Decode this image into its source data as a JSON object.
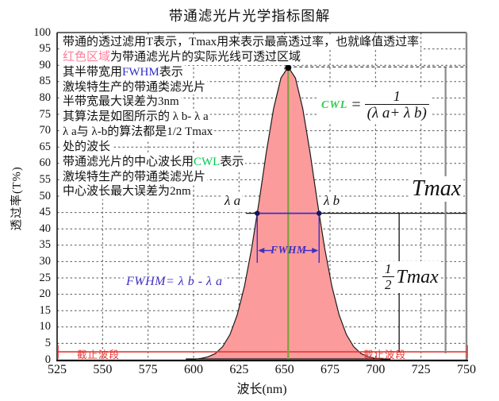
{
  "title": "带通滤光片光学指标图解",
  "info_lines": [
    [
      {
        "t": "带通的透过滤用T表示，Tmax用来表示最高透过率，也就峰值透过率",
        "c": ""
      }
    ],
    [
      {
        "t": "红色区域",
        "c": "pink"
      },
      {
        "t": "为带通滤光片的实际光线可透过区域",
        "c": ""
      }
    ],
    [
      {
        "t": "其半带宽用",
        "c": ""
      },
      {
        "t": "FWHM",
        "c": "blue"
      },
      {
        "t": "表示",
        "c": ""
      }
    ],
    [
      {
        "t": "激埃特生产的带通类滤光片",
        "c": ""
      }
    ],
    [
      {
        "t": "半带宽最大误差为3nm",
        "c": ""
      }
    ],
    [
      {
        "t": "其算法是如图所示的 λ b- λ a",
        "c": ""
      }
    ],
    [
      {
        "t": " λ a与 λ-b的算法都是1/2 Tmax",
        "c": ""
      }
    ],
    [
      {
        "t": "处的波长",
        "c": ""
      }
    ],
    [
      {
        "t": "带通滤光片的中心波长用",
        "c": ""
      },
      {
        "t": "CWL",
        "c": "green"
      },
      {
        "t": "表示",
        "c": ""
      }
    ],
    [
      {
        "t": "激埃特生产的带通类滤光片",
        "c": ""
      }
    ],
    [
      {
        "t": "中心波长最大误差为2nm",
        "c": ""
      }
    ]
  ],
  "formulas": {
    "cwl_lhs": "CWL",
    "cwl_eq": "=",
    "cwl_num": "1",
    "cwl_den": "(λ a+ λ b)",
    "fwhm": "FWHM= λ b - λ a"
  },
  "labels": {
    "tmax": "Tmax",
    "half_num": "1",
    "half_den": "2",
    "tmax2": "Tmax",
    "lambda_a": "λ a",
    "lambda_b": "λ b",
    "fwhm": "FWHM",
    "cutoff_left": "截止波段",
    "cutoff_right": "截止波段"
  },
  "axes": {
    "xlabel": "波长(nm)",
    "ylabel": "透过率(T%)",
    "x_ticks": [
      525,
      550,
      575,
      600,
      625,
      650,
      675,
      700,
      725,
      750
    ],
    "y_ticks": [
      0,
      5,
      10,
      15,
      20,
      25,
      30,
      35,
      40,
      45,
      50,
      55,
      60,
      65,
      70,
      75,
      80,
      85,
      90,
      95,
      100
    ]
  },
  "colors": {
    "curve_fill": "#FB9B9B",
    "curve_stroke": "#1b1b1b",
    "cwl_line": "#7CA23C",
    "blue_dim": "#3F2FBF",
    "red_cutoff": "#E53935",
    "grid": "#555555",
    "frame_right": "#8a8a8a",
    "dot": "#000000",
    "half_dot": "#141460"
  },
  "chart_data": {
    "type": "area",
    "title": "带通滤光片光学指标图解",
    "xlabel": "波长(nm)",
    "ylabel": "透过率(T%)",
    "xlim": [
      525,
      750
    ],
    "ylim": [
      0,
      100
    ],
    "grid": true,
    "curve": {
      "x": [
        596,
        600,
        604,
        608,
        612,
        616,
        620,
        624,
        628,
        632,
        636,
        640,
        644,
        648,
        652,
        656,
        660,
        664,
        668,
        672,
        676,
        680,
        684,
        688,
        692,
        696,
        700,
        704,
        708
      ],
      "y": [
        0.1,
        0.1,
        0.4,
        0.9,
        1.9,
        4.0,
        7.7,
        13.7,
        22.5,
        34.3,
        48.4,
        63.4,
        76.8,
        86.1,
        89.5,
        86.1,
        76.8,
        63.4,
        48.4,
        34.3,
        22.5,
        13.7,
        7.7,
        4.0,
        1.9,
        0.9,
        0.4,
        0.1,
        0.1
      ]
    },
    "annotations": {
      "cwl_nm": 652,
      "lambda_a_nm": 635,
      "lambda_b_nm": 669,
      "tmax_pct": 89.5,
      "half_tmax_pct": 44.75,
      "fwhm_nm": 34,
      "cutoff_line_pct": 2.4,
      "half_dim_line_nm": 713,
      "tmax_dim_line_nm": 738.5
    }
  }
}
